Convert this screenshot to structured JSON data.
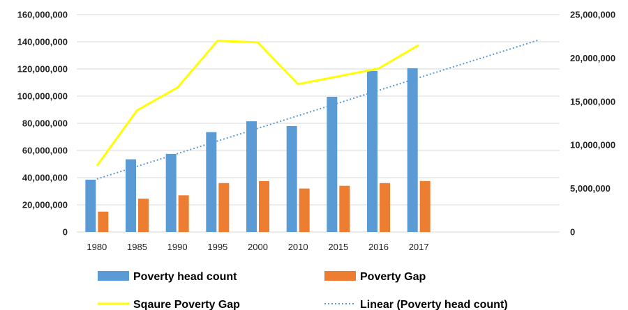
{
  "chart_data": {
    "type": "bar",
    "categories": [
      "1980",
      "1985",
      "1990",
      "1995",
      "2000",
      "2010",
      "2015",
      "2016",
      "2017"
    ],
    "x_axis_extra_slots": 3,
    "series": [
      {
        "name": "Poverty head count",
        "type": "bar",
        "axis": "left",
        "color": "#5b9bd5",
        "values": [
          38500000,
          53500000,
          57500000,
          73500000,
          81500000,
          78000000,
          99500000,
          118500000,
          120500000
        ]
      },
      {
        "name": "Poverty Gap",
        "type": "bar",
        "axis": "left",
        "color": "#ed7d31",
        "values": [
          15000000,
          24500000,
          27000000,
          36000000,
          37500000,
          32000000,
          34000000,
          36000000,
          37500000
        ]
      },
      {
        "name": "Sqaure Poverty Gap",
        "type": "line",
        "axis": "right",
        "color": "#ffff00",
        "values": [
          7600000,
          14000000,
          16600000,
          22000000,
          21800000,
          17000000,
          17900000,
          18800000,
          21500000
        ]
      },
      {
        "name": "Linear (Poverty head count)",
        "type": "trendline",
        "axis": "left",
        "color": "#5b9bd5",
        "start": 39000000,
        "end": 141500000
      }
    ],
    "left_axis": {
      "min": 0,
      "max": 160000000,
      "ticks": [
        "0",
        "20,000,000",
        "40,000,000",
        "60,000,000",
        "80,000,000",
        "100,000,000",
        "120,000,000",
        "140,000,000",
        "160,000,000"
      ]
    },
    "right_axis": {
      "min": 0,
      "max": 25000000,
      "ticks": [
        "0",
        "5,000,000",
        "10,000,000",
        "15,000,000",
        "20,000,000",
        "25,000,000"
      ]
    },
    "grid": true,
    "legend_position": "bottom",
    "title": "",
    "xlabel": "",
    "ylabel": ""
  }
}
